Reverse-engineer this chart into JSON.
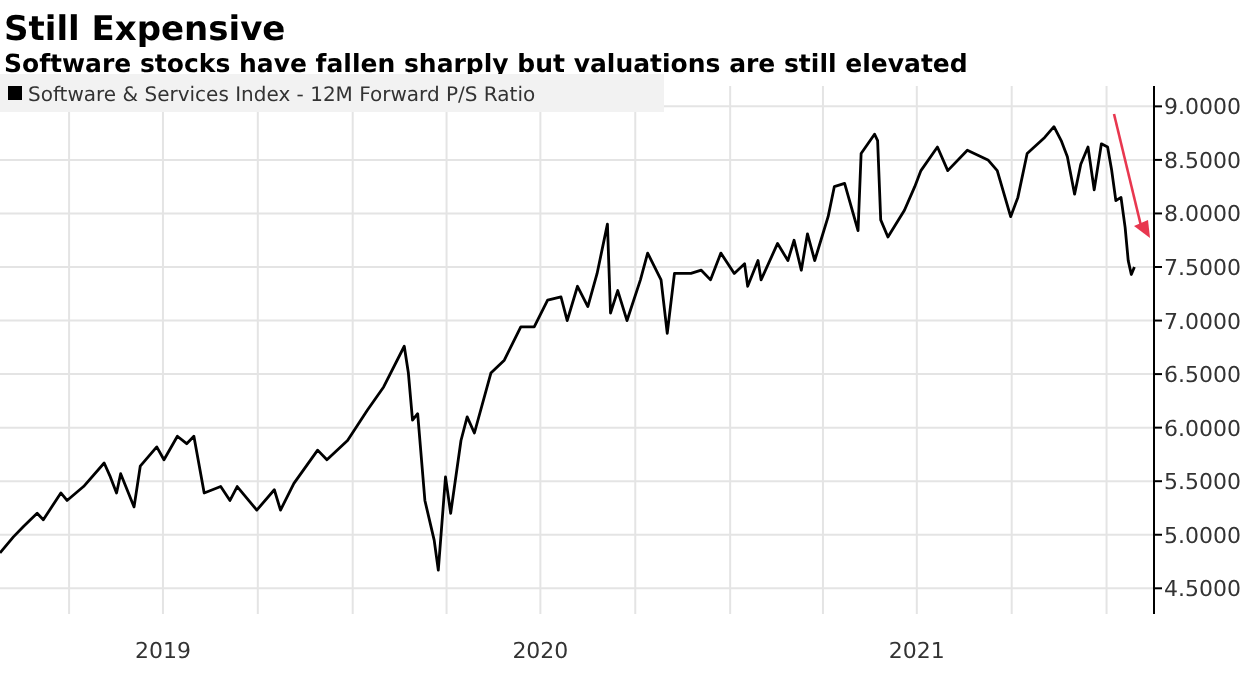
{
  "chart_data": {
    "type": "line",
    "title": "Still Expensive",
    "subtitle": "Software stocks have fallen sharply but valuations are still elevated",
    "xlim": [
      "2019-01-24",
      "2022-02-16"
    ],
    "xticks": [
      {
        "value": "2019-04-01",
        "label": null
      },
      {
        "value": "2019-07-01",
        "label": "2019"
      },
      {
        "value": "2019-10-01",
        "label": null
      },
      {
        "value": "2020-01-01",
        "label": null
      },
      {
        "value": "2020-04-01",
        "label": null
      },
      {
        "value": "2020-07-01",
        "label": "2020"
      },
      {
        "value": "2020-10-01",
        "label": null
      },
      {
        "value": "2021-01-01",
        "label": null
      },
      {
        "value": "2021-04-01",
        "label": null
      },
      {
        "value": "2021-07-01",
        "label": "2021"
      },
      {
        "value": "2021-10-01",
        "label": null
      },
      {
        "value": "2022-01-01",
        "label": null
      }
    ],
    "ylim": [
      4.26,
      9.19
    ],
    "yticks": [
      {
        "value": 4.5,
        "label": "4.5000"
      },
      {
        "value": 5,
        "label": "5.0000"
      },
      {
        "value": 5.5,
        "label": "5.5000"
      },
      {
        "value": 6,
        "label": "6.0000"
      },
      {
        "value": 6.5,
        "label": "6.5000"
      },
      {
        "value": 7,
        "label": "7.0000"
      },
      {
        "value": 7.5,
        "label": "7.5000"
      },
      {
        "value": 8,
        "label": "8.0000"
      },
      {
        "value": 8.5,
        "label": "8.5000"
      },
      {
        "value": 9,
        "label": "9.0000"
      }
    ],
    "grid": true,
    "legend": "top left",
    "marker": "none",
    "line_style": "solid",
    "series": [
      {
        "name": "Software & Services Index - 12M Forward P/S Ratio",
        "color": "#000000",
        "x": [
          "2019-01-24",
          "2019-02-06",
          "2019-02-16",
          "2019-03-01",
          "2019-03-07",
          "2019-03-24",
          "2019-03-30",
          "2019-04-15",
          "2019-05-05",
          "2019-05-11",
          "2019-05-17",
          "2019-05-21",
          "2019-06-03",
          "2019-06-09",
          "2019-06-25",
          "2019-07-02",
          "2019-07-15",
          "2019-07-24",
          "2019-07-31",
          "2019-08-10",
          "2019-08-26",
          "2019-09-04",
          "2019-09-11",
          "2019-09-30",
          "2019-10-17",
          "2019-10-23",
          "2019-11-05",
          "2019-11-28",
          "2019-12-07",
          "2019-12-27",
          "2020-01-15",
          "2020-01-31",
          "2020-02-20",
          "2020-02-24",
          "2020-02-28",
          "2020-03-04",
          "2020-03-11",
          "2020-03-20",
          "2020-03-24",
          "2020-03-31",
          "2020-04-05",
          "2020-04-15",
          "2020-04-21",
          "2020-04-28",
          "2020-05-14",
          "2020-05-27",
          "2020-06-12",
          "2020-06-25",
          "2020-07-08",
          "2020-07-21",
          "2020-07-27",
          "2020-08-06",
          "2020-08-16",
          "2020-08-25",
          "2020-09-04",
          "2020-09-07",
          "2020-09-14",
          "2020-09-23",
          "2020-10-06",
          "2020-10-13",
          "2020-10-26",
          "2020-11-01",
          "2020-11-08",
          "2020-11-24",
          "2020-12-04",
          "2020-12-13",
          "2020-12-23",
          "2021-01-05",
          "2021-01-15",
          "2021-01-18",
          "2021-01-28",
          "2021-01-31",
          "2021-02-16",
          "2021-02-26",
          "2021-03-04",
          "2021-03-11",
          "2021-03-17",
          "2021-03-24",
          "2021-03-30",
          "2021-04-06",
          "2021-04-12",
          "2021-04-22",
          "2021-05-05",
          "2021-05-08",
          "2021-05-21",
          "2021-05-24",
          "2021-05-27",
          "2021-06-03",
          "2021-06-19",
          "2021-06-29",
          "2021-07-05",
          "2021-07-21",
          "2021-07-31",
          "2021-08-19",
          "2021-09-08",
          "2021-09-17",
          "2021-09-30",
          "2021-10-07",
          "2021-10-16",
          "2021-11-02",
          "2021-11-11",
          "2021-11-18",
          "2021-11-24",
          "2021-12-01",
          "2021-12-07",
          "2021-12-14",
          "2021-12-20",
          "2021-12-27",
          "2022-01-02",
          "2022-01-06",
          "2022-01-10",
          "2022-01-15",
          "2022-01-19",
          "2022-01-22",
          "2022-01-25",
          "2022-01-28"
        ],
        "values": [
          4.83,
          4.98,
          5.08,
          5.2,
          5.14,
          5.39,
          5.32,
          5.45,
          5.67,
          5.54,
          5.39,
          5.57,
          5.26,
          5.64,
          5.82,
          5.7,
          5.92,
          5.85,
          5.92,
          5.39,
          5.45,
          5.32,
          5.45,
          5.23,
          5.42,
          5.23,
          5.48,
          5.79,
          5.7,
          5.88,
          6.16,
          6.38,
          6.76,
          6.51,
          6.07,
          6.13,
          5.32,
          4.95,
          4.67,
          5.54,
          5.2,
          5.88,
          6.1,
          5.95,
          6.51,
          6.63,
          6.94,
          6.94,
          7.19,
          7.22,
          7.0,
          7.32,
          7.13,
          7.44,
          7.9,
          7.07,
          7.28,
          7.0,
          7.38,
          7.63,
          7.38,
          6.88,
          7.44,
          7.44,
          7.47,
          7.38,
          7.63,
          7.44,
          7.53,
          7.32,
          7.56,
          7.38,
          7.72,
          7.56,
          7.75,
          7.47,
          7.81,
          7.56,
          7.75,
          7.97,
          8.25,
          8.28,
          7.84,
          8.56,
          8.74,
          8.68,
          7.94,
          7.78,
          8.03,
          8.25,
          8.4,
          8.62,
          8.4,
          8.59,
          8.5,
          8.4,
          7.97,
          8.15,
          8.56,
          8.71,
          8.81,
          8.68,
          8.53,
          8.18,
          8.46,
          8.62,
          8.22,
          8.65,
          8.62,
          8.4,
          8.12,
          8.15,
          7.87,
          7.56,
          7.43,
          7.5
        ]
      }
    ]
  }
}
